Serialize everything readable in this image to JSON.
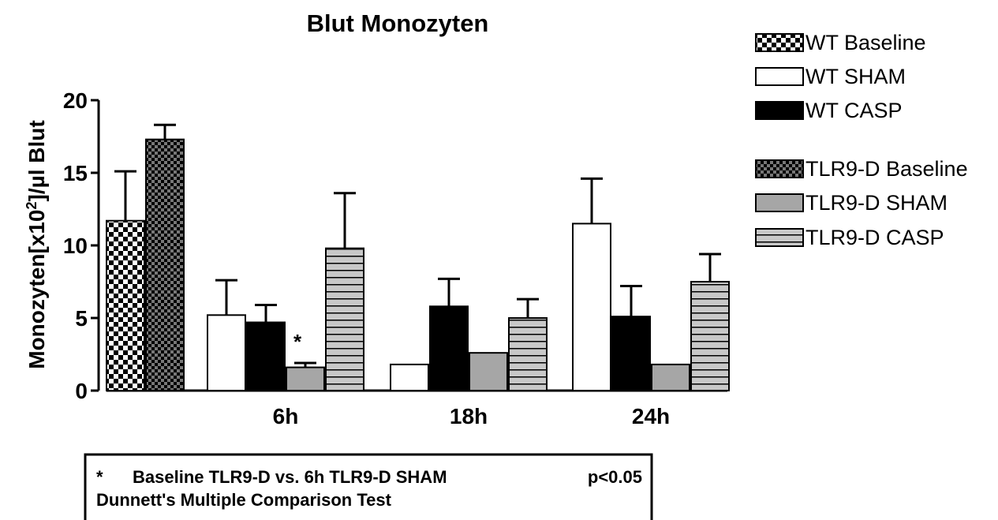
{
  "chart_data": {
    "type": "bar",
    "title": "Blut Monozyten",
    "xlabel": "",
    "ylabel": {
      "main": "Monozyten[x10",
      "sup": "2",
      "rest": "]/µl Blut"
    },
    "ylim": [
      0,
      20
    ],
    "yticks": [
      "0",
      "5",
      "10",
      "15",
      "20"
    ],
    "grid": false,
    "legend_position": "top-right",
    "groups": [
      {
        "label": "",
        "bars": [
          {
            "series": "WT Baseline",
            "value": 11.7,
            "error": 3.4
          },
          {
            "series": "TLR9-D Baseline",
            "value": 17.3,
            "error": 1.0
          }
        ]
      },
      {
        "label": "6h",
        "bars": [
          {
            "series": "WT SHAM",
            "value": 5.2,
            "error": 2.4
          },
          {
            "series": "WT CASP",
            "value": 4.7,
            "error": 1.2
          },
          {
            "series": "TLR9-D SHAM",
            "value": 1.6,
            "error": 0.3,
            "annotation": "*"
          },
          {
            "series": "TLR9-D CASP",
            "value": 9.8,
            "error": 3.8
          }
        ]
      },
      {
        "label": "18h",
        "bars": [
          {
            "series": "WT SHAM",
            "value": 1.8,
            "error": 0
          },
          {
            "series": "WT CASP",
            "value": 5.8,
            "error": 1.9
          },
          {
            "series": "TLR9-D SHAM",
            "value": 2.6,
            "error": 0
          },
          {
            "series": "TLR9-D CASP",
            "value": 5.0,
            "error": 1.3
          }
        ]
      },
      {
        "label": "24h",
        "bars": [
          {
            "series": "WT SHAM",
            "value": 11.5,
            "error": 3.1
          },
          {
            "series": "WT CASP",
            "value": 5.1,
            "error": 2.1
          },
          {
            "series": "TLR9-D SHAM",
            "value": 1.8,
            "error": 0
          },
          {
            "series": "TLR9-D CASP",
            "value": 7.5,
            "error": 1.9
          }
        ]
      }
    ],
    "legend": [
      {
        "name": "WT Baseline",
        "pattern": "checker-light"
      },
      {
        "name": "WT SHAM",
        "pattern": "white"
      },
      {
        "name": "WT CASP",
        "pattern": "black"
      },
      {
        "name": "TLR9-D Baseline",
        "pattern": "checker-dark"
      },
      {
        "name": "TLR9-D SHAM",
        "pattern": "gray"
      },
      {
        "name": "TLR9-D CASP",
        "pattern": "hstripe"
      }
    ],
    "series_styles": {
      "WT Baseline": "checker-light",
      "WT SHAM": "white",
      "WT CASP": "black",
      "TLR9-D Baseline": "checker-dark",
      "TLR9-D SHAM": "gray",
      "TLR9-D CASP": "hstripe"
    },
    "colors": {
      "black": "#000000",
      "white": "#ffffff",
      "gray": "#a6a6a6",
      "dark_gray": "#777777",
      "stripe_bg": "#c8c8c8"
    },
    "note": {
      "line1_marker": "*",
      "line1_text": "Baseline TLR9-D vs. 6h TLR9-D SHAM",
      "line1_p": "p<0.05",
      "line2_text": "Dunnett's Multiple Comparison Test"
    }
  }
}
